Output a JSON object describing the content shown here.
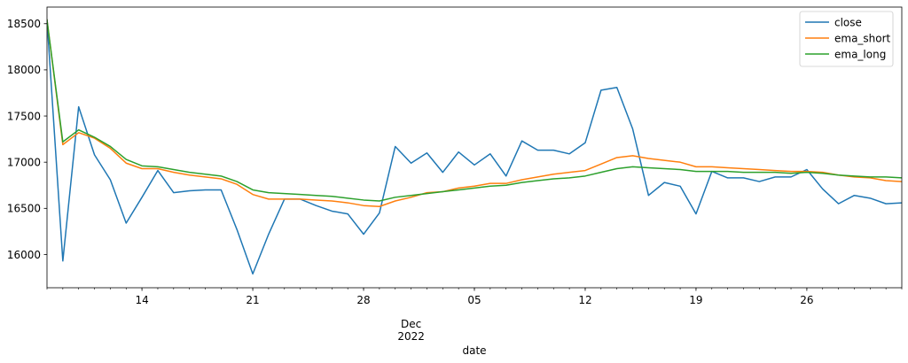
{
  "chart_data": {
    "type": "line",
    "xlabel": "date",
    "ylabel": "",
    "ylim": [
      15640,
      18680
    ],
    "x": [
      "2022-11-08",
      "2022-11-09",
      "2022-11-10",
      "2022-11-11",
      "2022-11-12",
      "2022-11-13",
      "2022-11-14",
      "2022-11-15",
      "2022-11-16",
      "2022-11-17",
      "2022-11-18",
      "2022-11-19",
      "2022-11-20",
      "2022-11-21",
      "2022-11-22",
      "2022-11-23",
      "2022-11-24",
      "2022-11-25",
      "2022-11-26",
      "2022-11-27",
      "2022-11-28",
      "2022-11-29",
      "2022-11-30",
      "2022-12-01",
      "2022-12-02",
      "2022-12-03",
      "2022-12-04",
      "2022-12-05",
      "2022-12-06",
      "2022-12-07",
      "2022-12-08",
      "2022-12-09",
      "2022-12-10",
      "2022-12-11",
      "2022-12-12",
      "2022-12-13",
      "2022-12-14",
      "2022-12-15",
      "2022-12-16",
      "2022-12-17",
      "2022-12-18",
      "2022-12-19",
      "2022-12-20",
      "2022-12-21",
      "2022-12-22",
      "2022-12-23",
      "2022-12-24",
      "2022-12-25",
      "2022-12-26",
      "2022-12-27",
      "2022-12-28",
      "2022-12-29",
      "2022-12-30",
      "2022-12-31",
      "2023-01-01"
    ],
    "xlim": [
      "2022-11-08",
      "2023-01-01"
    ],
    "x_ticks": [
      {
        "date": "2022-11-14",
        "label": "14"
      },
      {
        "date": "2022-11-21",
        "label": "21"
      },
      {
        "date": "2022-11-28",
        "label": "28"
      },
      {
        "date": "2022-12-05",
        "label": "05"
      },
      {
        "date": "2022-12-12",
        "label": "12"
      },
      {
        "date": "2022-12-19",
        "label": "19"
      },
      {
        "date": "2022-12-26",
        "label": "26"
      }
    ],
    "x_secondary_label": {
      "date": "2022-12-01",
      "line1": "Dec",
      "line2": "2022"
    },
    "y_ticks": [
      16000,
      16500,
      17000,
      17500,
      18000,
      18500
    ],
    "grid": false,
    "legend_position": "top-right",
    "series": [
      {
        "name": "close",
        "color": "#1f77b4",
        "values": [
          18540,
          15930,
          17600,
          17080,
          16810,
          16340,
          16620,
          16910,
          16670,
          16690,
          16700,
          16700,
          16270,
          15790,
          16220,
          16600,
          16600,
          16530,
          16470,
          16440,
          16220,
          16450,
          17170,
          16990,
          17100,
          16890,
          17110,
          16970,
          17090,
          16850,
          17230,
          17130,
          17130,
          17090,
          17210,
          17780,
          17810,
          17360,
          16640,
          16780,
          16740,
          16440,
          16900,
          16830,
          16830,
          16790,
          16840,
          16840,
          16920,
          16710,
          16550,
          16640,
          16610,
          16550,
          16560
        ]
      },
      {
        "name": "ema_short",
        "color": "#ff7f0e",
        "values": [
          18540,
          17190,
          17320,
          17260,
          17150,
          16990,
          16930,
          16930,
          16890,
          16860,
          16840,
          16820,
          16760,
          16650,
          16600,
          16600,
          16600,
          16590,
          16580,
          16560,
          16530,
          16520,
          16580,
          16620,
          16670,
          16680,
          16720,
          16740,
          16770,
          16770,
          16810,
          16840,
          16870,
          16890,
          16910,
          16980,
          17050,
          17070,
          17040,
          17020,
          17000,
          16950,
          16950,
          16940,
          16930,
          16920,
          16910,
          16900,
          16900,
          16890,
          16860,
          16840,
          16830,
          16800,
          16790
        ]
      },
      {
        "name": "ema_long",
        "color": "#2ca02c",
        "values": [
          18540,
          17220,
          17350,
          17270,
          17170,
          17030,
          16960,
          16950,
          16920,
          16890,
          16870,
          16850,
          16790,
          16700,
          16670,
          16660,
          16650,
          16640,
          16630,
          16610,
          16590,
          16580,
          16620,
          16640,
          16660,
          16680,
          16700,
          16720,
          16740,
          16750,
          16780,
          16800,
          16820,
          16830,
          16850,
          16890,
          16930,
          16950,
          16940,
          16930,
          16920,
          16900,
          16900,
          16900,
          16890,
          16890,
          16890,
          16880,
          16890,
          16880,
          16860,
          16850,
          16840,
          16840,
          16830
        ]
      }
    ]
  }
}
